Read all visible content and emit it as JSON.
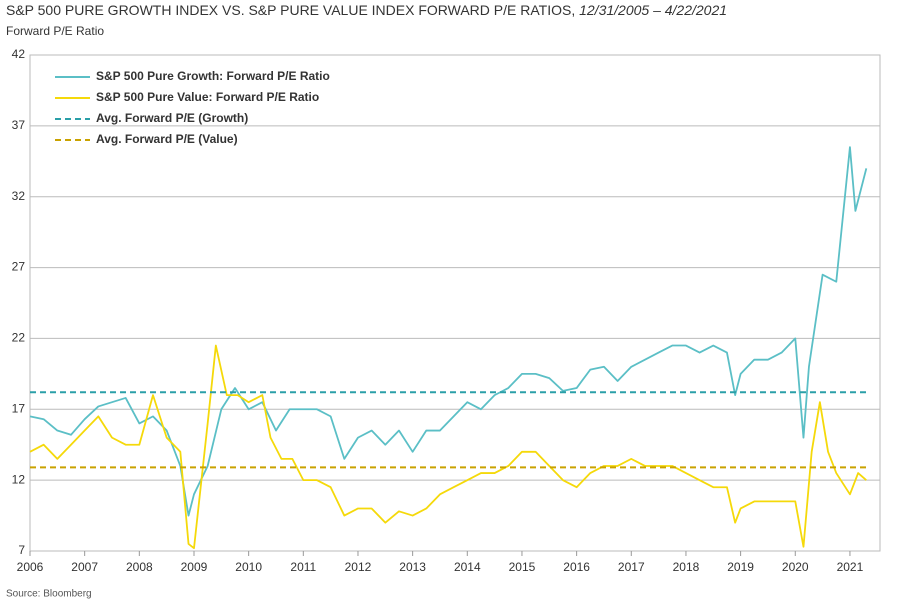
{
  "chart_data": {
    "type": "line",
    "title": "S&P 500 PURE GROWTH INDEX VS. S&P PURE VALUE INDEX FORWARD P/E RATIOS,",
    "title_dates": "12/31/2005 – 4/22/2021",
    "subtitle": "Forward P/E Ratio",
    "source": "Source: Bloomberg",
    "xlim": [
      2006,
      2021.55
    ],
    "xticks": [
      2006,
      2007,
      2008,
      2009,
      2010,
      2011,
      2012,
      2013,
      2014,
      2015,
      2016,
      2017,
      2018,
      2019,
      2020,
      2021
    ],
    "ylim": [
      7,
      42
    ],
    "yticks": [
      7,
      12,
      17,
      22,
      27,
      32,
      37,
      42
    ],
    "grid": true,
    "legend": "upper-left",
    "series": [
      {
        "name": "S&P 500 Pure Growth: Forward P/E Ratio",
        "color": "#5bbfc6",
        "dashed": false,
        "x": [
          2006,
          2006.25,
          2006.5,
          2006.75,
          2007,
          2007.25,
          2007.5,
          2007.75,
          2008,
          2008.25,
          2008.5,
          2008.75,
          2008.9,
          2009,
          2009.25,
          2009.5,
          2009.75,
          2010,
          2010.25,
          2010.5,
          2010.75,
          2011,
          2011.25,
          2011.5,
          2011.75,
          2012,
          2012.25,
          2012.5,
          2012.75,
          2013,
          2013.25,
          2013.5,
          2013.75,
          2014,
          2014.25,
          2014.5,
          2014.75,
          2015,
          2015.25,
          2015.5,
          2015.75,
          2016,
          2016.25,
          2016.5,
          2016.75,
          2017,
          2017.25,
          2017.5,
          2017.75,
          2018,
          2018.25,
          2018.5,
          2018.75,
          2018.9,
          2019,
          2019.25,
          2019.5,
          2019.75,
          2020,
          2020.15,
          2020.25,
          2020.5,
          2020.75,
          2021,
          2021.1,
          2021.3
        ],
        "values": [
          16.5,
          16.3,
          15.5,
          15.2,
          16.3,
          17.2,
          17.5,
          17.8,
          16,
          16.5,
          15.5,
          13,
          9.5,
          11,
          13,
          17,
          18.5,
          17,
          17.5,
          15.5,
          17,
          17,
          17,
          16.5,
          13.5,
          15,
          15.5,
          14.5,
          15.5,
          14,
          15.5,
          15.5,
          16.5,
          17.5,
          17,
          18,
          18.5,
          19.5,
          19.5,
          19.2,
          18.3,
          18.5,
          19.8,
          20,
          19,
          20,
          20.5,
          21,
          21.5,
          21.5,
          21,
          21.5,
          21,
          18,
          19.5,
          20.5,
          20.5,
          21,
          22,
          15,
          20,
          26.5,
          26,
          35.5,
          31,
          34
        ]
      },
      {
        "name": "S&P 500 Pure Value: Forward P/E Ratio",
        "color": "#f5d90a",
        "dashed": false,
        "x": [
          2006,
          2006.25,
          2006.5,
          2006.75,
          2007,
          2007.25,
          2007.5,
          2007.75,
          2008,
          2008.25,
          2008.5,
          2008.75,
          2008.9,
          2009,
          2009.25,
          2009.4,
          2009.6,
          2009.8,
          2010,
          2010.25,
          2010.4,
          2010.6,
          2010.8,
          2011,
          2011.25,
          2011.5,
          2011.75,
          2012,
          2012.25,
          2012.5,
          2012.75,
          2013,
          2013.25,
          2013.5,
          2013.75,
          2014,
          2014.25,
          2014.5,
          2014.75,
          2015,
          2015.25,
          2015.5,
          2015.75,
          2016,
          2016.25,
          2016.5,
          2016.75,
          2017,
          2017.25,
          2017.5,
          2017.75,
          2018,
          2018.25,
          2018.5,
          2018.75,
          2018.9,
          2019,
          2019.25,
          2019.5,
          2019.75,
          2020,
          2020.15,
          2020.3,
          2020.45,
          2020.6,
          2020.75,
          2021,
          2021.15,
          2021.3
        ],
        "values": [
          14,
          14.5,
          13.5,
          14.5,
          15.5,
          16.5,
          15,
          14.5,
          14.5,
          18,
          15,
          14,
          7.5,
          7.2,
          16,
          21.5,
          18,
          18,
          17.5,
          18,
          15,
          13.5,
          13.5,
          12,
          12,
          11.5,
          9.5,
          10,
          10,
          9,
          9.8,
          9.5,
          10,
          11,
          11.5,
          12,
          12.5,
          12.5,
          13,
          14,
          14,
          13,
          12,
          11.5,
          12.5,
          13,
          13,
          13.5,
          13,
          13,
          13,
          12.5,
          12,
          11.5,
          11.5,
          9,
          10,
          10.5,
          10.5,
          10.5,
          10.5,
          7.3,
          14,
          17.5,
          14,
          12.5,
          11,
          12.5,
          12
        ]
      },
      {
        "name": "Avg. Forward P/E (Growth)",
        "color": "#2a9fa8",
        "dashed": true,
        "x": [
          2006,
          2021.3
        ],
        "values": [
          18.2,
          18.2
        ]
      },
      {
        "name": "Avg. Forward P/E (Value)",
        "color": "#c9a200",
        "dashed": true,
        "x": [
          2006,
          2021.3
        ],
        "values": [
          12.9,
          12.9
        ]
      }
    ]
  }
}
